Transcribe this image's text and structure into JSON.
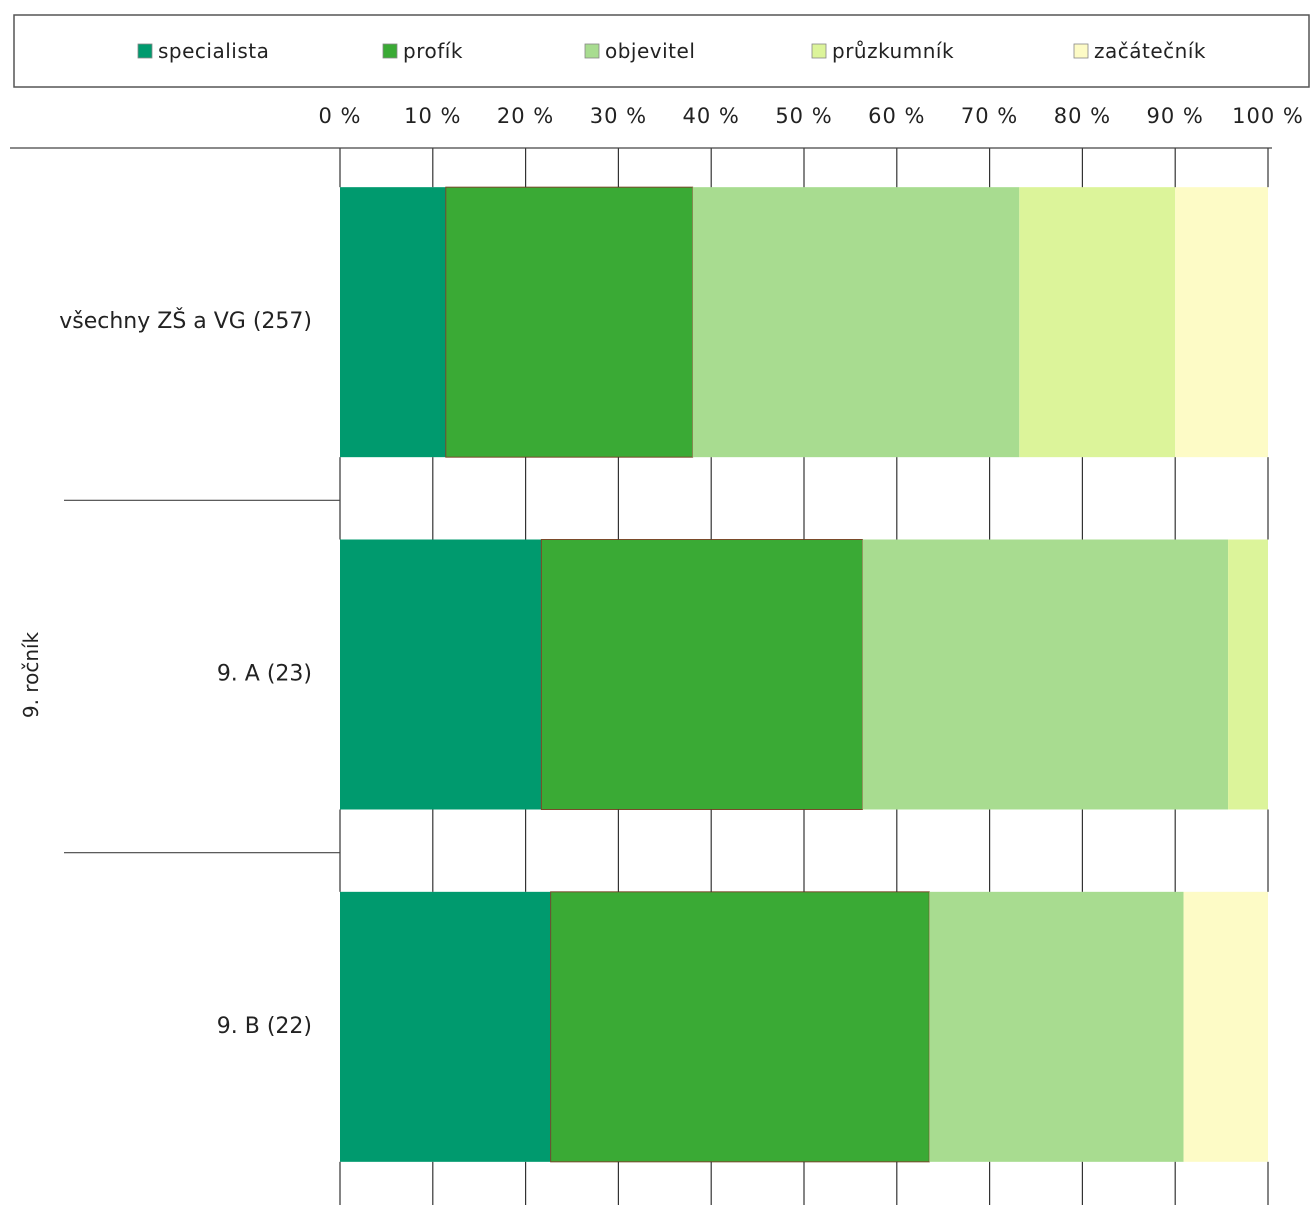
{
  "chart_data": {
    "type": "bar",
    "orientation": "horizontal",
    "stacked": "percent",
    "group_label": "9. ročník",
    "categories": [
      "všechny ZŠ a VG (257)",
      "9. A (23)",
      "9. B (22)"
    ],
    "series": [
      {
        "name": "specialista",
        "color": "#009a6e",
        "values": [
          11.4,
          21.7,
          22.7
        ]
      },
      {
        "name": "profík",
        "color": "#3aaa35",
        "values": [
          26.6,
          34.6,
          40.8
        ]
      },
      {
        "name": "objevitel",
        "color": "#a8dc90",
        "values": [
          35.2,
          39.4,
          27.4
        ]
      },
      {
        "name": "průzkumník",
        "color": "#dcf49a",
        "values": [
          16.8,
          4.3,
          0
        ]
      },
      {
        "name": "začátečník",
        "color": "#fdfbc6",
        "values": [
          10.0,
          0,
          9.1
        ]
      }
    ],
    "x_ticks": [
      "0 %",
      "10 %",
      "20 %",
      "30 %",
      "40 %",
      "50 %",
      "60 %",
      "70 %",
      "80 %",
      "90 %",
      "100 %"
    ],
    "xlim": [
      0,
      100
    ],
    "grid": true,
    "legend_position": "top"
  }
}
